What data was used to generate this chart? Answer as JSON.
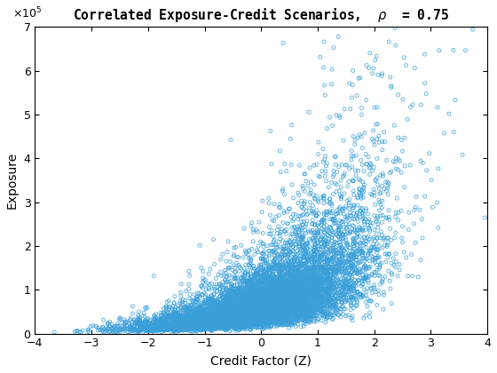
{
  "title": "Correlated Exposure-Credit Scenarios,  $\\rho$  = 0.75",
  "xlabel": "Credit Factor (Z)",
  "ylabel": "Exposure",
  "rho": 0.75,
  "n_samples": 10000,
  "seed": 1,
  "xlim": [
    -4,
    4
  ],
  "ylim": [
    0,
    700000
  ],
  "marker_color": "#3a9fd8",
  "marker_size": 8,
  "marker_linewidth": 0.6,
  "background_color": "#ffffff",
  "mu_log": 11.0,
  "sigma_log": 0.85
}
